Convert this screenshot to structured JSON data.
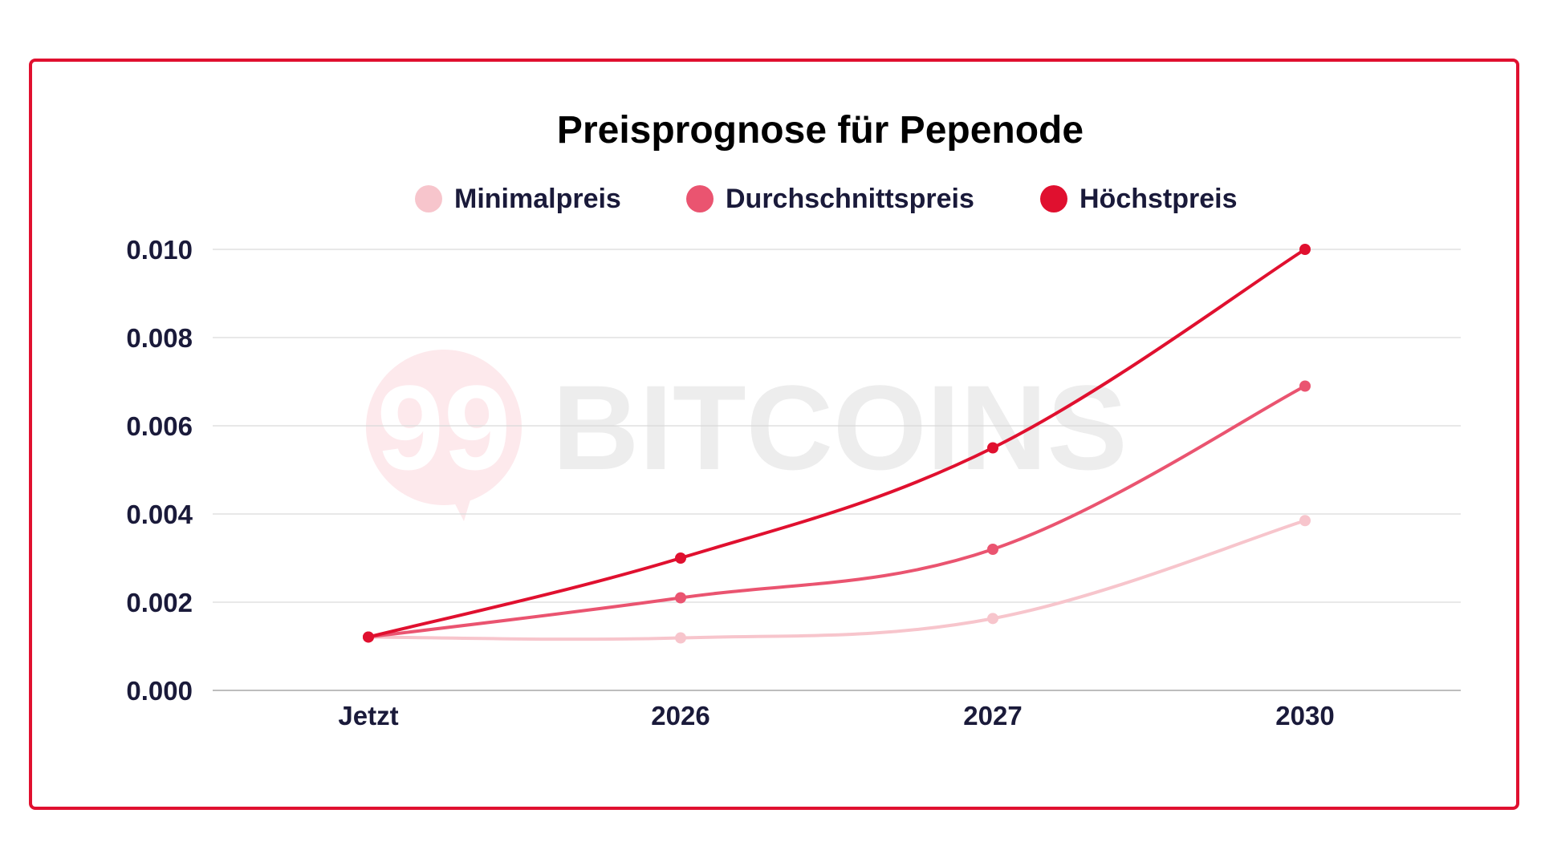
{
  "chart_data": {
    "type": "line",
    "title": "Preisprognose für Pepenode",
    "categories": [
      "Jetzt",
      "2026",
      "2027",
      "2030"
    ],
    "y_ticks": [
      "0.000",
      "0.002",
      "0.004",
      "0.006",
      "0.008",
      "0.010"
    ],
    "ylim": [
      0,
      0.01
    ],
    "grid": true,
    "legend_position": "top",
    "series": [
      {
        "name": "Minimalpreis",
        "color": "#f7c5cc",
        "values": [
          0.00121,
          0.00119,
          0.00163,
          0.00385
        ]
      },
      {
        "name": "Durchschnittspreis",
        "color": "#ea5470",
        "values": [
          0.00121,
          0.0021,
          0.0032,
          0.0069
        ]
      },
      {
        "name": "Höchstpreis",
        "color": "#e0102f",
        "values": [
          0.00121,
          0.003,
          0.0055,
          0.01
        ]
      }
    ]
  },
  "watermark": {
    "logo_number": "99",
    "brand": "BITCOINS"
  },
  "colors": {
    "frame": "#e0102f",
    "grid": "#d9d9d9",
    "text": "#1a1a3a"
  }
}
